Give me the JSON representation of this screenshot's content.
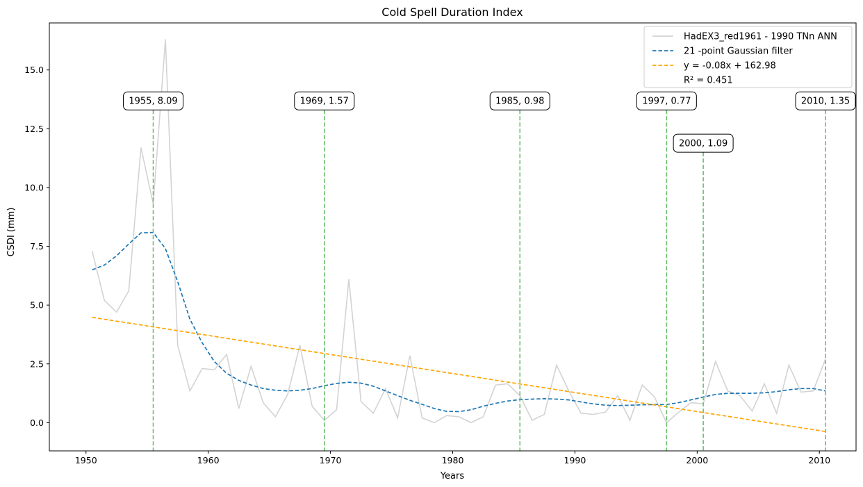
{
  "chart_data": {
    "type": "line",
    "title": "Cold Spell Duration Index",
    "xlabel": "Years",
    "ylabel": "CSDI (mm)",
    "xlim": [
      1947,
      2013
    ],
    "ylim": [
      -1.2,
      17.0
    ],
    "x_ticks": [
      1950,
      1960,
      1970,
      1980,
      1990,
      2000,
      2010
    ],
    "y_ticks": [
      0.0,
      2.5,
      5.0,
      7.5,
      10.0,
      12.5,
      15.0
    ],
    "x_tick_labels": [
      "1950",
      "1960",
      "1970",
      "1980",
      "1990",
      "2000",
      "2010"
    ],
    "y_tick_labels": [
      "0.0",
      "2.5",
      "5.0",
      "7.5",
      "10.0",
      "12.5",
      "15.0"
    ],
    "grid": false,
    "legend_position": "top-right",
    "series": [
      {
        "name": "HadEX3_red1961 - 1990 TNn ANN",
        "color": "#d3d3d3",
        "style": "solid",
        "x": [
          1950.5,
          1951.5,
          1952.5,
          1953.5,
          1954.5,
          1955.5,
          1956.5,
          1957.5,
          1958.5,
          1959.5,
          1960.5,
          1961.5,
          1962.5,
          1963.5,
          1964.5,
          1965.5,
          1966.5,
          1967.5,
          1968.5,
          1969.5,
          1970.5,
          1971.5,
          1972.5,
          1973.5,
          1974.5,
          1975.5,
          1976.5,
          1977.5,
          1978.5,
          1979.5,
          1980.5,
          1981.5,
          1982.5,
          1983.5,
          1984.5,
          1985.5,
          1986.5,
          1987.5,
          1988.5,
          1989.5,
          1990.5,
          1991.5,
          1992.5,
          1993.5,
          1994.5,
          1995.5,
          1996.5,
          1997.5,
          1998.5,
          1999.5,
          2000.5,
          2001.5,
          2002.5,
          2003.5,
          2004.5,
          2005.5,
          2006.5,
          2007.5,
          2008.5,
          2009.5,
          2010.5
        ],
        "values": [
          7.3,
          5.2,
          4.7,
          5.6,
          11.7,
          9.3,
          16.3,
          3.3,
          1.35,
          2.3,
          2.25,
          2.9,
          0.6,
          2.4,
          0.85,
          0.25,
          1.2,
          3.3,
          0.7,
          0.1,
          0.55,
          6.1,
          0.9,
          0.4,
          1.45,
          0.2,
          2.85,
          0.2,
          0.0,
          0.3,
          0.25,
          0.0,
          0.25,
          1.6,
          1.65,
          1.15,
          0.1,
          0.35,
          2.45,
          1.35,
          0.4,
          0.35,
          0.45,
          1.15,
          0.1,
          1.6,
          1.1,
          0.0,
          0.45,
          0.85,
          0.8,
          2.6,
          1.35,
          1.15,
          0.5,
          1.65,
          0.4,
          2.45,
          1.3,
          1.35,
          2.7
        ]
      },
      {
        "name": "21 -point Gaussian filter",
        "color": "#1f77b4",
        "style": "dashed",
        "x": [
          1950.5,
          1951.5,
          1952.5,
          1953.5,
          1954.5,
          1955.5,
          1956.5,
          1957.5,
          1958.5,
          1959.5,
          1960.5,
          1961.5,
          1962.5,
          1963.5,
          1964.5,
          1965.5,
          1966.5,
          1967.5,
          1968.5,
          1969.5,
          1970.5,
          1971.5,
          1972.5,
          1973.5,
          1974.5,
          1975.5,
          1976.5,
          1977.5,
          1978.5,
          1979.5,
          1980.5,
          1981.5,
          1982.5,
          1983.5,
          1984.5,
          1985.5,
          1986.5,
          1987.5,
          1988.5,
          1989.5,
          1990.5,
          1991.5,
          1992.5,
          1993.5,
          1994.5,
          1995.5,
          1996.5,
          1997.5,
          1998.5,
          1999.5,
          2000.5,
          2001.5,
          2002.5,
          2003.5,
          2004.5,
          2005.5,
          2006.5,
          2007.5,
          2008.5,
          2009.5,
          2010.5
        ],
        "values": [
          6.5,
          6.7,
          7.1,
          7.6,
          8.07,
          8.09,
          7.4,
          6.0,
          4.4,
          3.4,
          2.6,
          2.1,
          1.8,
          1.6,
          1.45,
          1.38,
          1.35,
          1.38,
          1.45,
          1.57,
          1.67,
          1.72,
          1.68,
          1.55,
          1.35,
          1.15,
          0.95,
          0.78,
          0.6,
          0.48,
          0.47,
          0.55,
          0.7,
          0.82,
          0.92,
          0.98,
          1.0,
          1.02,
          1.0,
          0.97,
          0.88,
          0.8,
          0.74,
          0.73,
          0.74,
          0.76,
          0.77,
          0.77,
          0.85,
          0.97,
          1.09,
          1.2,
          1.25,
          1.25,
          1.25,
          1.27,
          1.32,
          1.4,
          1.45,
          1.45,
          1.35
        ]
      },
      {
        "name": "y = -0.08x + 162.98",
        "color": "#ffa500",
        "style": "dashed",
        "x": [
          1950.5,
          2010.5
        ],
        "values": [
          4.48,
          -0.38
        ]
      }
    ],
    "legend": [
      {
        "label": "HadEX3_red1961 - 1990 TNn ANN",
        "color": "#d3d3d3",
        "style": "solid"
      },
      {
        "label": "21 -point Gaussian filter",
        "color": "#1f77b4",
        "style": "dashed"
      },
      {
        "label": "y = -0.08x + 162.98",
        "color": "#ffa500",
        "style": "dashed"
      },
      {
        "label": "R² = 0.451",
        "color": "none",
        "style": "none"
      }
    ],
    "vlines": {
      "color": "#6abf69",
      "items": [
        {
          "x": 1955.5,
          "label": "1955, 8.09",
          "label_y": 13.3
        },
        {
          "x": 1969.5,
          "label": "1969, 1.57",
          "label_y": 13.3
        },
        {
          "x": 1985.5,
          "label": "1985, 0.98",
          "label_y": 13.3
        },
        {
          "x": 1997.5,
          "label": "1997, 0.77",
          "label_y": 13.3
        },
        {
          "x": 2000.5,
          "label": "2000, 1.09",
          "label_y": 11.5
        },
        {
          "x": 2010.5,
          "label": "2010, 1.35",
          "label_y": 13.3
        }
      ]
    }
  }
}
